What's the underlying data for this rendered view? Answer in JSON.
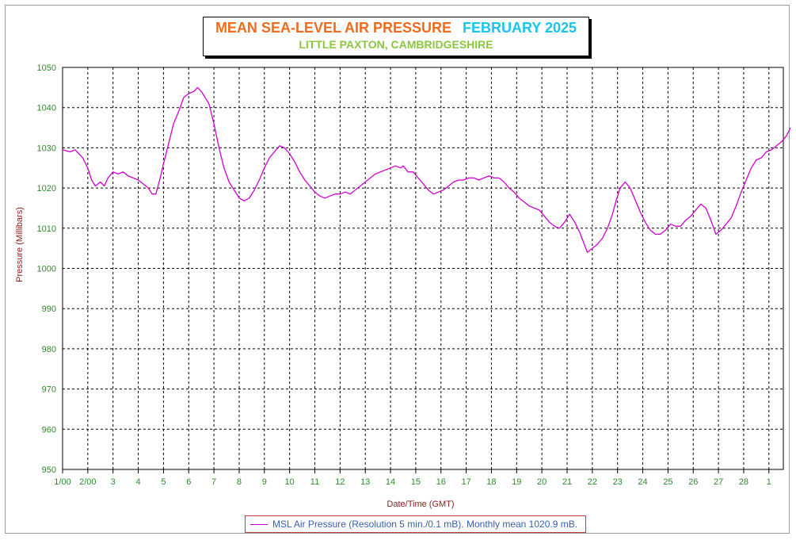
{
  "chart_data": {
    "type": "line",
    "title": "MEAN SEA-LEVEL AIR PRESSURE",
    "title_month": "FEBRUARY 2025",
    "subtitle": "LITTLE PAXTON, CAMBRIDGESHIRE",
    "xlabel": "Date/Time (GMT)",
    "ylabel": "Pressure (Millibars)",
    "ylim": [
      950,
      1050
    ],
    "y_ticks": [
      950,
      960,
      970,
      980,
      990,
      1000,
      1010,
      1020,
      1030,
      1040,
      1050
    ],
    "xlim": [
      1,
      29.85
    ],
    "x_ticks": [
      {
        "x": 1,
        "label": "1/00"
      },
      {
        "x": 2,
        "label": "2/00"
      },
      {
        "x": 3,
        "label": "3"
      },
      {
        "x": 4,
        "label": "4"
      },
      {
        "x": 5,
        "label": "5"
      },
      {
        "x": 6,
        "label": "6"
      },
      {
        "x": 7,
        "label": "7"
      },
      {
        "x": 8,
        "label": "8"
      },
      {
        "x": 9,
        "label": "9"
      },
      {
        "x": 10,
        "label": "10"
      },
      {
        "x": 11,
        "label": "11"
      },
      {
        "x": 12,
        "label": "12"
      },
      {
        "x": 13,
        "label": "13"
      },
      {
        "x": 14,
        "label": "14"
      },
      {
        "x": 15,
        "label": "15"
      },
      {
        "x": 16,
        "label": "16"
      },
      {
        "x": 17,
        "label": "17"
      },
      {
        "x": 18,
        "label": "18"
      },
      {
        "x": 19,
        "label": "19"
      },
      {
        "x": 20,
        "label": "20"
      },
      {
        "x": 21,
        "label": "21"
      },
      {
        "x": 22,
        "label": "22"
      },
      {
        "x": 23,
        "label": "23"
      },
      {
        "x": 24,
        "label": "24"
      },
      {
        "x": 25,
        "label": "25"
      },
      {
        "x": 26,
        "label": "26"
      },
      {
        "x": 27,
        "label": "27"
      },
      {
        "x": 28,
        "label": "28"
      },
      {
        "x": 29,
        "label": "1"
      }
    ],
    "grid": true,
    "legend_position": "bottom-center",
    "series": [
      {
        "name": "MSL Air Pressure (Resolution 5 min./0.1 mB). Monthly mean 1020.9 mB.",
        "color": "#d000d0",
        "x": [
          1.0,
          1.3,
          1.5,
          1.8,
          2.0,
          2.15,
          2.3,
          2.5,
          2.65,
          2.8,
          3.0,
          3.2,
          3.4,
          3.6,
          3.8,
          4.0,
          4.2,
          4.4,
          4.55,
          4.7,
          4.85,
          5.0,
          5.2,
          5.4,
          5.6,
          5.8,
          6.0,
          6.2,
          6.35,
          6.5,
          6.65,
          6.8,
          7.0,
          7.2,
          7.4,
          7.6,
          7.8,
          8.0,
          8.2,
          8.4,
          8.6,
          8.8,
          9.0,
          9.2,
          9.4,
          9.6,
          9.8,
          10.0,
          10.2,
          10.4,
          10.6,
          10.8,
          11.0,
          11.2,
          11.4,
          11.6,
          11.8,
          12.0,
          12.2,
          12.4,
          12.6,
          12.8,
          13.0,
          13.2,
          13.4,
          13.6,
          13.8,
          14.0,
          14.2,
          14.4,
          14.5,
          14.7,
          14.9,
          15.1,
          15.3,
          15.5,
          15.7,
          15.9,
          16.1,
          16.3,
          16.5,
          16.7,
          16.9,
          17.1,
          17.3,
          17.5,
          17.7,
          17.9,
          18.1,
          18.3,
          18.5,
          18.7,
          18.9,
          19.1,
          19.3,
          19.5,
          19.7,
          19.9,
          20.1,
          20.3,
          20.5,
          20.7,
          20.9,
          21.1,
          21.3,
          21.5,
          21.65,
          21.8,
          22.0,
          22.2,
          22.4,
          22.6,
          22.8,
          22.95,
          23.1,
          23.3,
          23.5,
          23.7,
          23.9,
          24.1,
          24.3,
          24.5,
          24.7,
          24.9,
          25.1,
          25.3,
          25.5,
          25.7,
          25.9,
          26.1,
          26.3,
          26.5,
          26.7,
          26.9,
          27.1,
          27.3,
          27.5,
          27.7,
          27.9,
          28.1,
          28.3,
          28.5,
          28.7,
          28.9,
          29.1,
          29.3,
          29.5,
          29.7,
          29.85
        ],
        "y": [
          1029.5,
          1029.0,
          1029.5,
          1027.5,
          1025.0,
          1022.0,
          1020.5,
          1021.5,
          1020.5,
          1022.5,
          1024.0,
          1023.5,
          1024.0,
          1023.0,
          1022.5,
          1022.0,
          1021.0,
          1020.0,
          1018.5,
          1018.5,
          1022.0,
          1026.0,
          1031.0,
          1036.0,
          1039.0,
          1042.5,
          1043.5,
          1044.0,
          1045.0,
          1044.0,
          1042.5,
          1041.0,
          1036.0,
          1030.0,
          1025.0,
          1021.5,
          1019.5,
          1017.5,
          1016.8,
          1017.5,
          1019.5,
          1022.0,
          1025.0,
          1027.5,
          1029.0,
          1030.5,
          1030.0,
          1028.5,
          1026.5,
          1024.0,
          1022.0,
          1020.5,
          1019.0,
          1018.0,
          1017.5,
          1018.0,
          1018.5,
          1018.5,
          1019.0,
          1018.5,
          1019.5,
          1020.5,
          1021.5,
          1022.5,
          1023.5,
          1024.0,
          1024.5,
          1025.0,
          1025.5,
          1025.0,
          1025.5,
          1024.0,
          1024.0,
          1022.5,
          1021.0,
          1019.5,
          1018.5,
          1019.0,
          1019.5,
          1020.5,
          1021.5,
          1022.0,
          1022.0,
          1022.5,
          1022.5,
          1022.0,
          1022.5,
          1023.0,
          1022.5,
          1022.5,
          1021.5,
          1020.0,
          1019.0,
          1017.5,
          1016.5,
          1015.5,
          1015.0,
          1014.5,
          1013.0,
          1011.5,
          1010.5,
          1010.0,
          1011.5,
          1013.5,
          1011.5,
          1009.0,
          1006.5,
          1004.0,
          1005.0,
          1006.0,
          1007.5,
          1010.0,
          1013.5,
          1017.0,
          1020.0,
          1021.5,
          1020.0,
          1017.0,
          1014.0,
          1011.5,
          1009.5,
          1008.5,
          1008.5,
          1009.5,
          1011.0,
          1010.5,
          1010.5,
          1012.0,
          1013.0,
          1014.5,
          1016.0,
          1015.0,
          1012.0,
          1008.5,
          1009.5,
          1011.0,
          1012.5,
          1015.5,
          1019.0,
          1022.0,
          1025.0,
          1027.0,
          1027.5,
          1029.0,
          1029.5,
          1030.5,
          1031.5,
          1033.0,
          1035.0
        ]
      }
    ]
  }
}
